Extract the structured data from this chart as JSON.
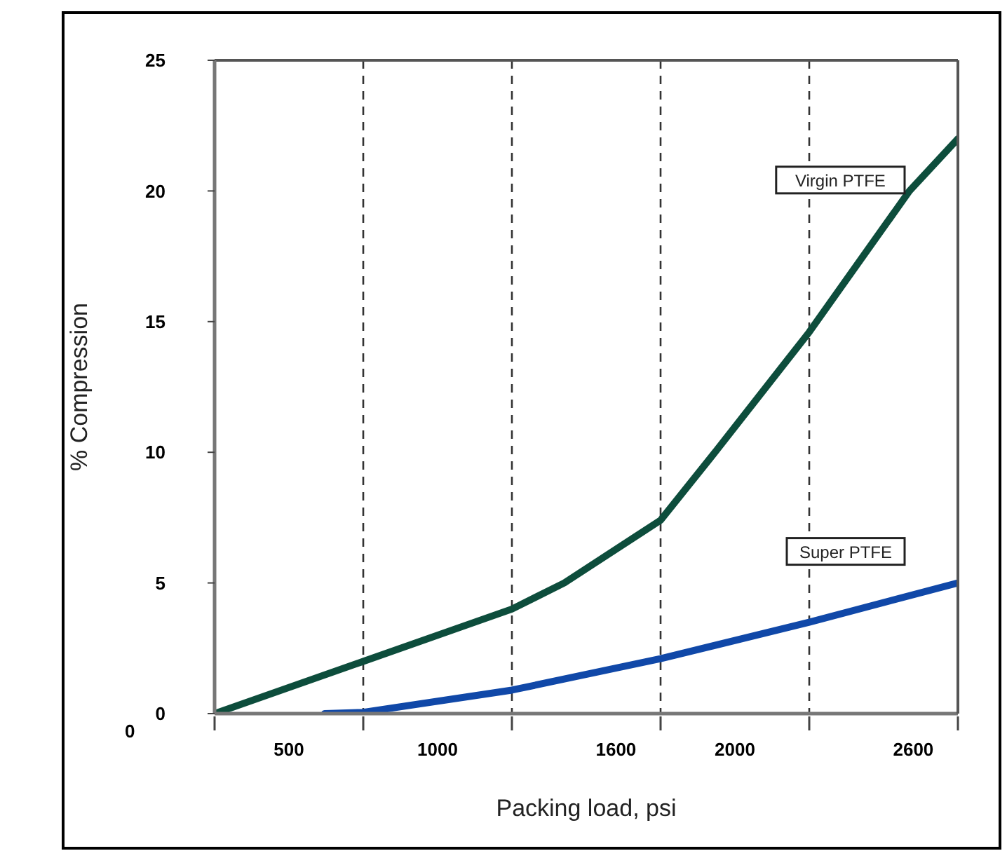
{
  "chart_data": {
    "type": "line",
    "xlabel": "Packing load, psi",
    "ylabel": "% Compression",
    "xlim": [
      250,
      2750
    ],
    "xticks": [
      {
        "value": 250,
        "label": null
      },
      {
        "value": 500,
        "label": "500"
      },
      {
        "value": 750,
        "label": null
      },
      {
        "value": 1000,
        "label": "1000"
      },
      {
        "value": 1250,
        "label": null
      },
      1600,
      {
        "value": 1750,
        "label": null
      },
      {
        "value": 2000,
        "label": "2000"
      },
      {
        "value": 2250,
        "label": null
      },
      2600,
      {
        "value": 2750,
        "label": null
      }
    ],
    "ylim": [
      0,
      25
    ],
    "yticks": [
      0,
      5,
      10,
      15,
      20,
      25
    ],
    "grid": true,
    "line_style": "solid",
    "marker": "none",
    "annotations": [
      "0"
    ],
    "series": [
      {
        "name": "Virgin PTFE",
        "color": "#0d4d3c",
        "x": [
          250,
          750,
          1250,
          1426,
          1750,
          1933,
          2250,
          2587,
          2750
        ],
        "values": [
          0,
          2.0,
          4.0,
          5.0,
          7.4,
          10,
          14.6,
          20,
          22.0
        ]
      },
      {
        "name": "Super PTFE",
        "color": "#1048a8",
        "x": [
          620,
          750,
          1250,
          1750,
          2250,
          2750
        ],
        "values": [
          0,
          0.05,
          0.9,
          2.1,
          3.5,
          5.0
        ]
      }
    ]
  }
}
